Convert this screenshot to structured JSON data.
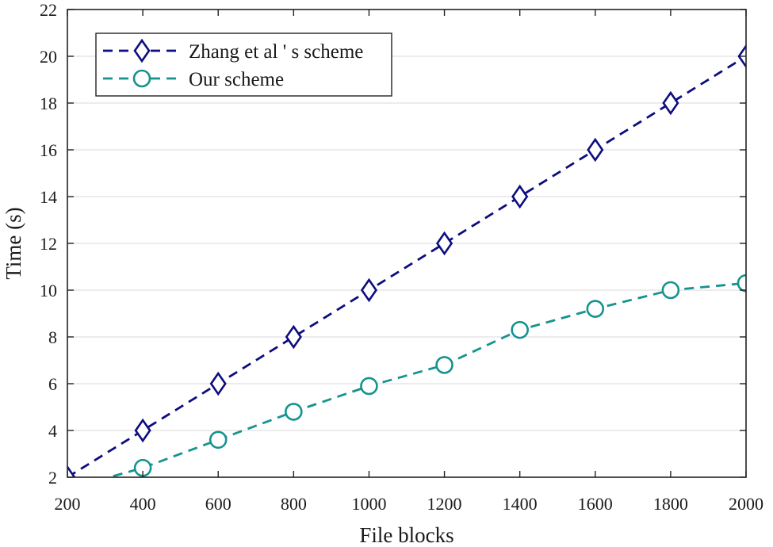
{
  "chart_data": {
    "type": "line",
    "title": "",
    "xlabel": "File blocks",
    "ylabel": "Time (s)",
    "xlim": [
      200,
      2000
    ],
    "ylim": [
      2,
      22
    ],
    "xticks": [
      200,
      400,
      600,
      800,
      1000,
      1200,
      1400,
      1600,
      1800,
      2000
    ],
    "yticks": [
      2,
      4,
      6,
      8,
      10,
      12,
      14,
      16,
      18,
      20,
      22
    ],
    "grid": true,
    "legend_position": "top-left",
    "series": [
      {
        "name": "Zhang et al ' s scheme",
        "marker": "diamond",
        "color": "#0d0d80",
        "x": [
          200,
          400,
          600,
          800,
          1000,
          1200,
          1400,
          1600,
          1800,
          2000
        ],
        "y": [
          2,
          4,
          6,
          8,
          10,
          12,
          14,
          16,
          18,
          20
        ]
      },
      {
        "name": "Our scheme",
        "marker": "circle",
        "color": "#16938f",
        "x": [
          200,
          400,
          600,
          800,
          1000,
          1200,
          1400,
          1600,
          1800,
          2000
        ],
        "y": [
          1.5,
          2.4,
          3.6,
          4.8,
          5.9,
          6.8,
          8.3,
          9.2,
          10.0,
          10.3
        ]
      }
    ]
  }
}
